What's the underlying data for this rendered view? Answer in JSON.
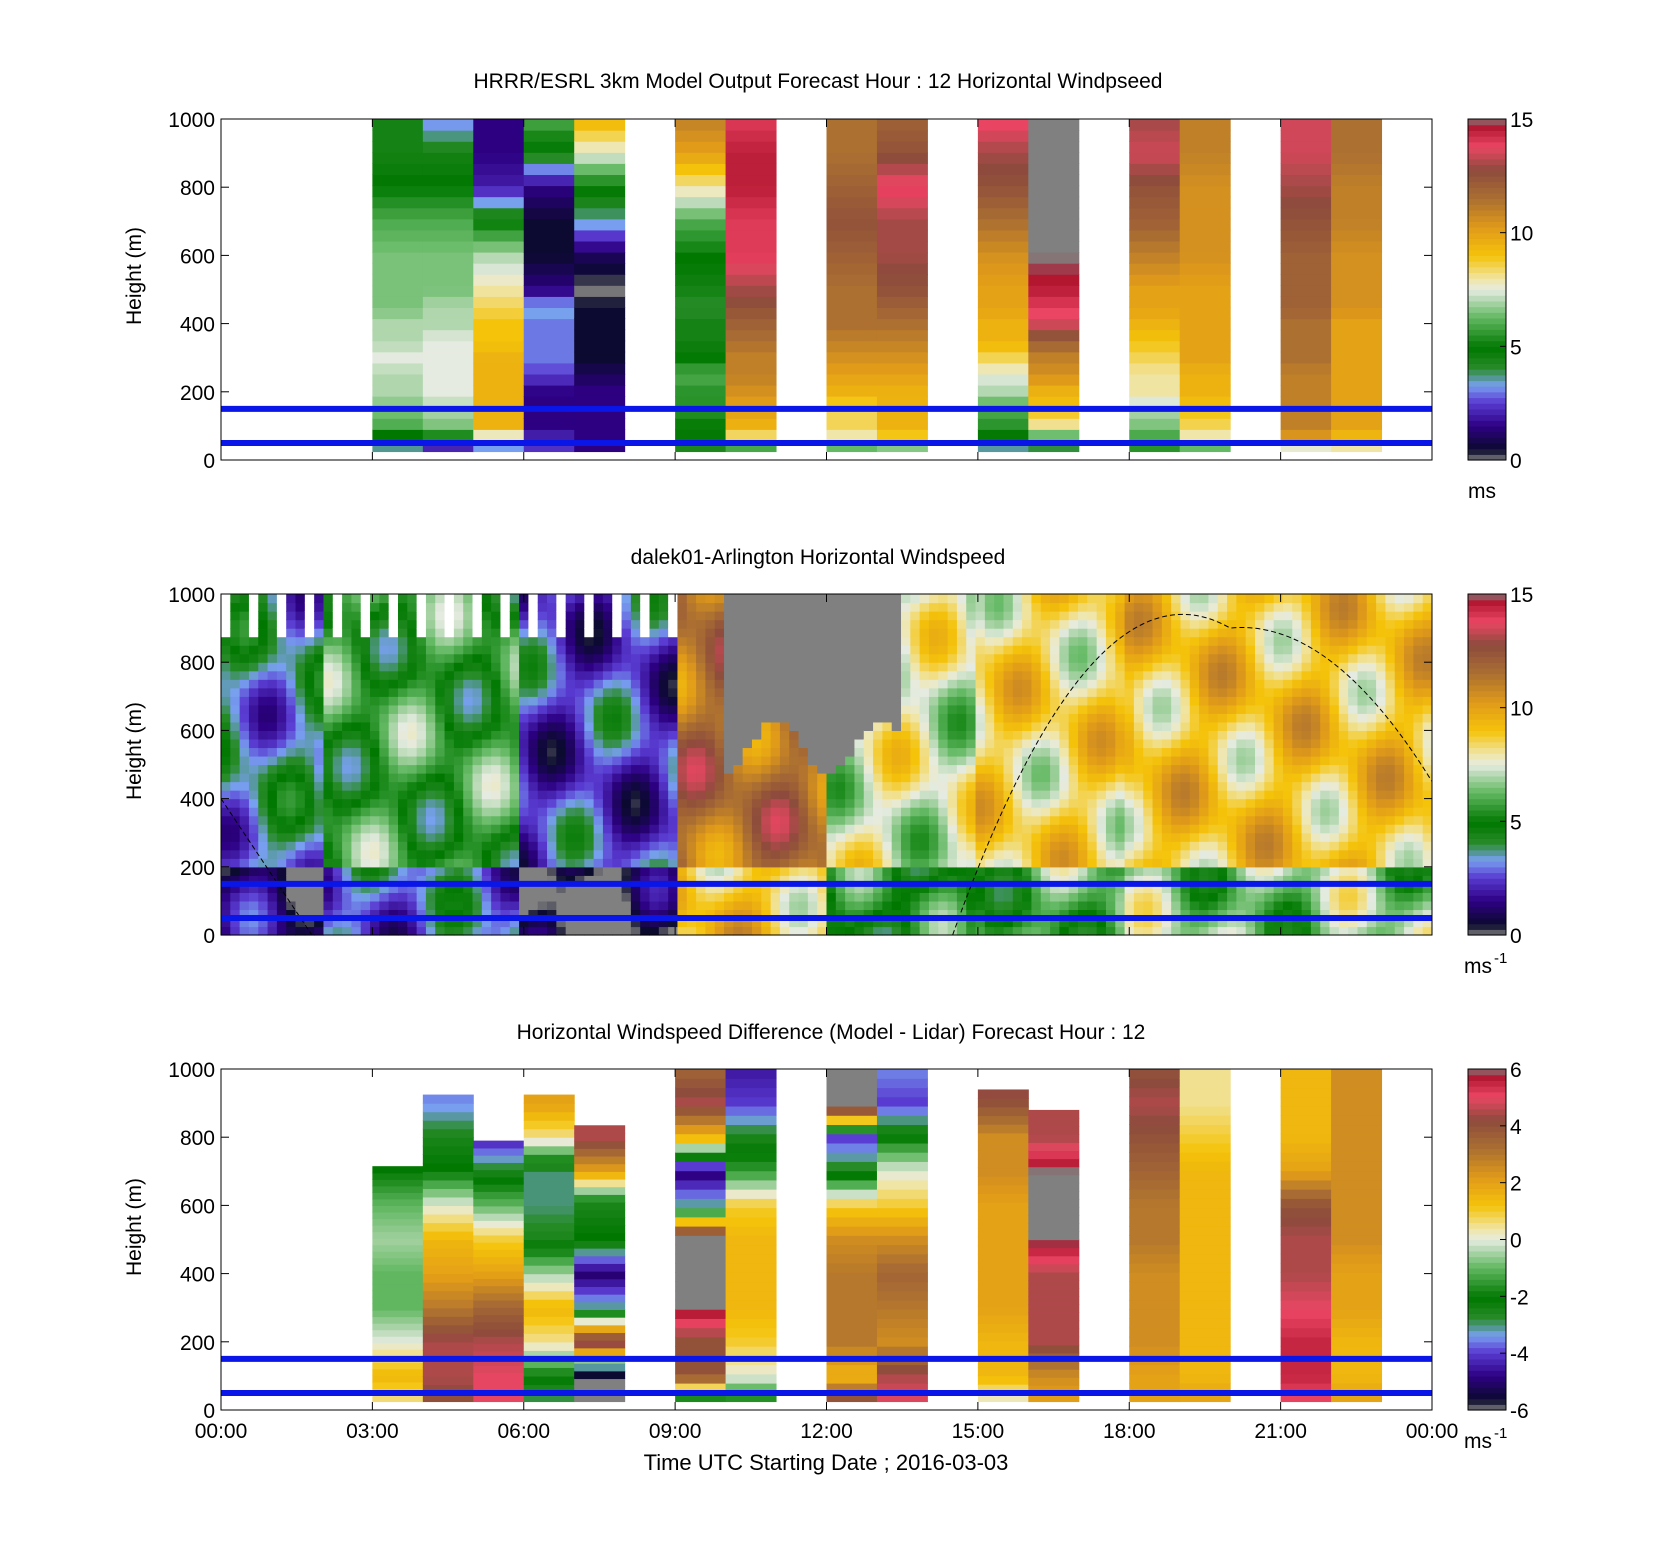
{
  "chart_data": [
    {
      "type": "heatmap",
      "title": "HRRR/ESRL 3km Model Output   Forecast Hour : 12 Horizontal Windpseed",
      "ylabel": "Height (m)",
      "xlabel": "",
      "ylim": [
        0,
        1000
      ],
      "yticks": [
        "0",
        "200",
        "400",
        "600",
        "800",
        "1000"
      ],
      "xlim_hours": [
        0,
        24
      ],
      "colorbar": {
        "ticks": [
          "0",
          "5",
          "10",
          "15"
        ],
        "range": [
          0,
          15
        ],
        "unit": "ms"
      },
      "reference_lines_m": [
        50,
        150
      ],
      "time_blocks_hours": [
        3,
        4,
        5,
        6,
        7,
        9,
        10,
        12,
        13,
        15,
        16,
        18,
        19,
        21,
        22
      ],
      "profile_levels_m": [
        25,
        50,
        75,
        100,
        150,
        200,
        250,
        300,
        350,
        400,
        450,
        500,
        600,
        700,
        800,
        900,
        1000
      ],
      "values_ms": [
        [
          3.0,
          4.0,
          5.0,
          6.0,
          6.5,
          7.0,
          7.0,
          7.5,
          7.0,
          7.0,
          6.5,
          6.5,
          6.5,
          6.0,
          5.0,
          4.5,
          4.5
        ],
        [
          0.5,
          3.0,
          5.5,
          6.5,
          7.0,
          7.5,
          7.5,
          7.5,
          7.5,
          7.0,
          7.0,
          6.5,
          6.5,
          6.0,
          5.0,
          4.5,
          3.0
        ],
        [
          2.0,
          4.0,
          8.0,
          9.5,
          9.5,
          9.5,
          9.5,
          9.5,
          9.0,
          9.0,
          8.5,
          8.0,
          7.0,
          5.0,
          2.0,
          1.5,
          1.5
        ],
        [
          3.0,
          2.0,
          2.0,
          1.5,
          1.5,
          1.5,
          2.5,
          3.0,
          3.0,
          3.0,
          3.5,
          1.5,
          0.5,
          0.5,
          1.5,
          4.5,
          6.0
        ],
        [
          1.5,
          1.5,
          1.5,
          1.5,
          1.5,
          1.5,
          1.0,
          0.5,
          0.5,
          0.5,
          0.5,
          0.0,
          1.0,
          3.5,
          5.0,
          7.5,
          9.5
        ],
        [
          3.0,
          5.0,
          5.0,
          5.0,
          5.5,
          5.5,
          6.0,
          5.0,
          4.5,
          4.5,
          4.0,
          4.5,
          5.0,
          6.0,
          8.0,
          10.0,
          11.0
        ],
        [
          3.0,
          7.5,
          8.5,
          9.5,
          10.0,
          10.5,
          11.0,
          11.0,
          11.5,
          12.0,
          12.5,
          13.0,
          14.0,
          14.0,
          14.5,
          14.5,
          14.0
        ],
        [
          5.0,
          7.0,
          8.0,
          8.5,
          8.5,
          9.5,
          10.0,
          10.5,
          11.0,
          11.5,
          11.5,
          11.5,
          12.0,
          12.5,
          12.0,
          11.5,
          11.5
        ],
        [
          5.0,
          7.5,
          9.0,
          9.5,
          9.5,
          9.5,
          10.0,
          10.5,
          11.0,
          11.5,
          12.0,
          12.5,
          13.0,
          13.0,
          14.0,
          12.5,
          12.0
        ],
        [
          1.0,
          5.0,
          5.0,
          5.5,
          6.0,
          7.0,
          7.5,
          8.5,
          9.5,
          9.5,
          10.0,
          10.0,
          10.5,
          11.5,
          12.5,
          13.0,
          14.0
        ],
        [
          3.0,
          4.5,
          6.5,
          8.0,
          9.0,
          9.5,
          10.5,
          11.0,
          12.0,
          13.5,
          14.0,
          14.5,
          15.0,
          15.0,
          15.0,
          15.0,
          15.0
        ],
        [
          5.5,
          5.5,
          6.0,
          6.5,
          7.0,
          8.0,
          8.0,
          8.5,
          9.0,
          9.5,
          10.0,
          10.0,
          11.0,
          12.0,
          12.5,
          13.5,
          13.0
        ],
        [
          5.0,
          7.0,
          8.0,
          8.5,
          9.0,
          9.5,
          9.5,
          10.0,
          10.0,
          10.0,
          10.0,
          10.0,
          10.5,
          10.5,
          10.5,
          11.0,
          11.0
        ],
        [
          6.0,
          8.5,
          10.5,
          11.0,
          11.0,
          11.0,
          11.0,
          11.5,
          11.5,
          11.5,
          12.0,
          12.0,
          12.0,
          12.5,
          13.0,
          13.5,
          13.5
        ],
        [
          7.0,
          8.5,
          9.5,
          10.0,
          10.0,
          10.0,
          10.0,
          10.0,
          10.0,
          10.0,
          10.5,
          10.5,
          10.5,
          11.0,
          11.0,
          11.5,
          11.5
        ]
      ]
    },
    {
      "type": "heatmap",
      "title": "dalek01-Arlington  Horizontal Windspeed",
      "ylabel": "Height (m)",
      "xlabel": "",
      "ylim": [
        0,
        1000
      ],
      "yticks": [
        "0",
        "200",
        "400",
        "600",
        "800",
        "1000"
      ],
      "xlim_hours": [
        0,
        24
      ],
      "colorbar": {
        "ticks": [
          "0",
          "5",
          "10",
          "15"
        ],
        "range": [
          0,
          15
        ],
        "unit": "ms",
        "unit_exp": "-1"
      },
      "reference_lines_m": [
        50,
        150
      ],
      "time_ranges_hours": [
        [
          0,
          2,
          3.5
        ],
        [
          2,
          6,
          5.5
        ],
        [
          6,
          9,
          2.5
        ],
        [
          9,
          12,
          11.5
        ],
        [
          12,
          15,
          7.5
        ],
        [
          15,
          18,
          8.5
        ],
        [
          18,
          24,
          9.0
        ]
      ],
      "saturated_region": {
        "hours": [
          10,
          13.5
        ],
        "min_height_m": 550
      },
      "boundary_layer_curve_m": [
        [
          0,
          400
        ],
        [
          1.8,
          0
        ],
        [
          14.5,
          0
        ],
        [
          20,
          900
        ],
        [
          24,
          450
        ]
      ]
    },
    {
      "type": "heatmap",
      "title": "Horizontal Windspeed Difference (Model - Lidar) Forecast Hour : 12",
      "ylabel": "Height (m)",
      "xlabel": "Time UTC  Starting Date ; 2016-03-03",
      "ylim": [
        0,
        1000
      ],
      "yticks": [
        "0",
        "200",
        "400",
        "600",
        "800",
        "1000"
      ],
      "xticks": [
        "00:00",
        "03:00",
        "06:00",
        "09:00",
        "12:00",
        "15:00",
        "18:00",
        "21:00",
        "00:00"
      ],
      "colorbar": {
        "ticks": [
          "-6",
          "-4",
          "-2",
          "0",
          "2",
          "4",
          "6"
        ],
        "range": [
          -6,
          6
        ],
        "unit": "ms",
        "unit_exp": "-1"
      },
      "reference_lines_m": [
        50,
        150
      ],
      "time_blocks_hours": [
        3,
        4,
        5,
        6,
        7,
        9,
        10,
        12,
        13,
        15,
        16,
        18,
        19,
        21,
        22
      ],
      "block_top_m": [
        715,
        925,
        790,
        925,
        835,
        1000,
        1000,
        1000,
        1000,
        940,
        880,
        1000,
        1000,
        1000,
        1000
      ],
      "profile_levels_m": [
        25,
        100,
        200,
        300,
        400,
        500,
        600,
        700,
        800,
        900,
        1000
      ],
      "values_ms": [
        [
          0.5,
          1.5,
          0.0,
          -1.0,
          -1.0,
          -0.5,
          -1.0,
          -2.0,
          -3.0,
          -3.5,
          -3.5
        ],
        [
          4.0,
          4.5,
          4.5,
          3.0,
          2.0,
          1.5,
          0.0,
          -2.0,
          -2.5,
          -3.5,
          -3.5
        ],
        [
          5.0,
          5.0,
          4.5,
          3.5,
          2.0,
          1.0,
          -1.0,
          -2.5,
          -4.5,
          -5.0,
          -5.0
        ],
        [
          -3.0,
          -2.0,
          0.5,
          1.5,
          -0.5,
          -2.5,
          -3.0,
          -3.0,
          0.5,
          2.0,
          2.0
        ],
        [
          -6.0,
          -6.0,
          5.0,
          -3.0,
          -5.0,
          -2.0,
          -2.5,
          2.0,
          4.5,
          4.5,
          4.5
        ],
        [
          -3.0,
          4.0,
          4.0,
          6.0,
          6.0,
          6.0,
          -3.0,
          -5.0,
          1.5,
          4.5,
          3.5
        ],
        [
          -2.0,
          0.0,
          1.0,
          1.5,
          1.5,
          1.5,
          1.0,
          -1.5,
          -2.5,
          -4.0,
          -4.5
        ],
        [
          4.5,
          1.5,
          3.0,
          3.0,
          3.0,
          2.5,
          1.0,
          -2.5,
          -4.0,
          6.0,
          6.0
        ],
        [
          5.0,
          4.5,
          2.5,
          3.0,
          3.5,
          2.5,
          1.0,
          0.0,
          -2.0,
          -4.0,
          -3.5
        ],
        [
          0.0,
          1.5,
          1.5,
          2.0,
          2.0,
          2.0,
          2.0,
          2.5,
          2.5,
          4.0,
          5.0
        ],
        [
          2.0,
          2.5,
          4.5,
          4.5,
          4.5,
          6.0,
          6.0,
          6.0,
          4.5,
          4.5,
          6.0
        ],
        [
          2.0,
          2.0,
          2.5,
          2.5,
          2.5,
          3.0,
          3.0,
          3.5,
          4.0,
          4.5,
          4.0
        ],
        [
          2.0,
          1.5,
          1.5,
          1.5,
          1.5,
          1.5,
          1.5,
          1.5,
          1.0,
          0.5,
          0.5
        ],
        [
          5.0,
          5.5,
          5.5,
          5.0,
          4.5,
          4.5,
          4.0,
          2.0,
          1.5,
          1.5,
          1.5
        ],
        [
          2.0,
          1.5,
          1.5,
          2.0,
          2.0,
          2.5,
          2.5,
          2.5,
          2.5,
          2.5,
          2.5
        ]
      ]
    }
  ]
}
